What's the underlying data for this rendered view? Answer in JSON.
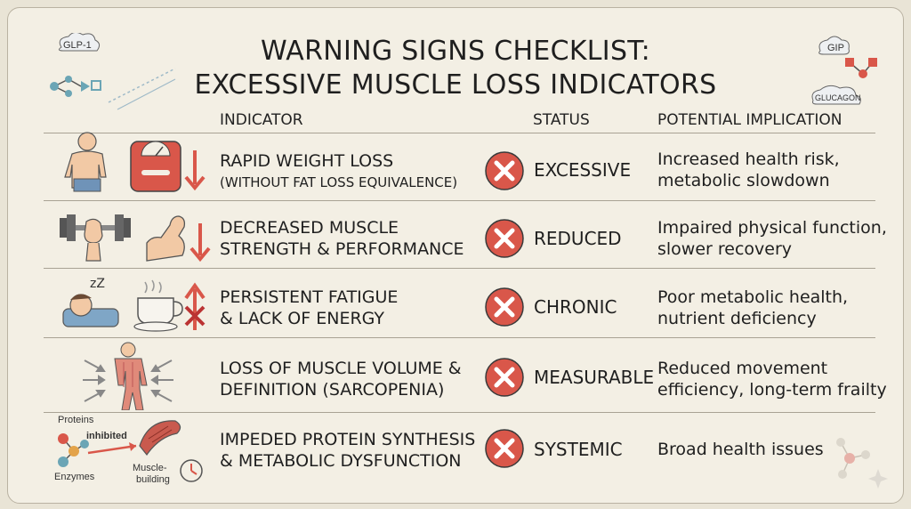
{
  "title": {
    "line1": "WARNING SIGNS CHECKLIST:",
    "line2": "EXCESSIVE MUSCLE LOSS INDICATORS"
  },
  "columns": {
    "indicator": "INDICATOR",
    "status": "STATUS",
    "implication": "POTENTIAL IMPLICATION"
  },
  "badges": {
    "glp1": "GLP-1",
    "gip": "GIP",
    "glucagon": "GLUCAGON"
  },
  "rows": [
    {
      "indicator_line1": "RAPID WEIGHT LOSS",
      "indicator_line2": "(WITHOUT FAT LOSS EQUIVALENCE)",
      "status": "EXCESSIVE",
      "implication_line1": "Increased health risk,",
      "implication_line2": "metabolic slowdown"
    },
    {
      "indicator_line1": "DECREASED MUSCLE",
      "indicator_line2": "STRENGTH & PERFORMANCE",
      "status": "REDUCED",
      "implication_line1": "Impaired physical function,",
      "implication_line2": "slower recovery"
    },
    {
      "indicator_line1": "PERSISTENT FATIGUE",
      "indicator_line2": "& LACK OF ENERGY",
      "status": "CHRONIC",
      "implication_line1": "Poor metabolic health,",
      "implication_line2": "nutrient deficiency"
    },
    {
      "indicator_line1": "LOSS OF MUSCLE VOLUME &",
      "indicator_line2": "DEFINITION (SARCOPENIA)",
      "status": "MEASURABLE",
      "implication_line1": "Reduced movement",
      "implication_line2": "efficiency, long-term frailty"
    },
    {
      "indicator_line1": "IMPEDED PROTEIN SYNTHESIS",
      "indicator_line2": "& METABOLIC DYSFUNCTION",
      "status": "SYSTEMIC",
      "implication_line1": "Broad health issues",
      "implication_line2": ""
    }
  ],
  "row5_icon_labels": {
    "proteins": "Proteins",
    "inhibited": "inhibited",
    "enzymes": "Enzymes",
    "muscle": "Muscle-",
    "building": "building"
  },
  "sleep_label": "zZ",
  "colors": {
    "warning_red": "#d9574a",
    "background": "#f3efe4",
    "skin": "#f2c9a5"
  }
}
